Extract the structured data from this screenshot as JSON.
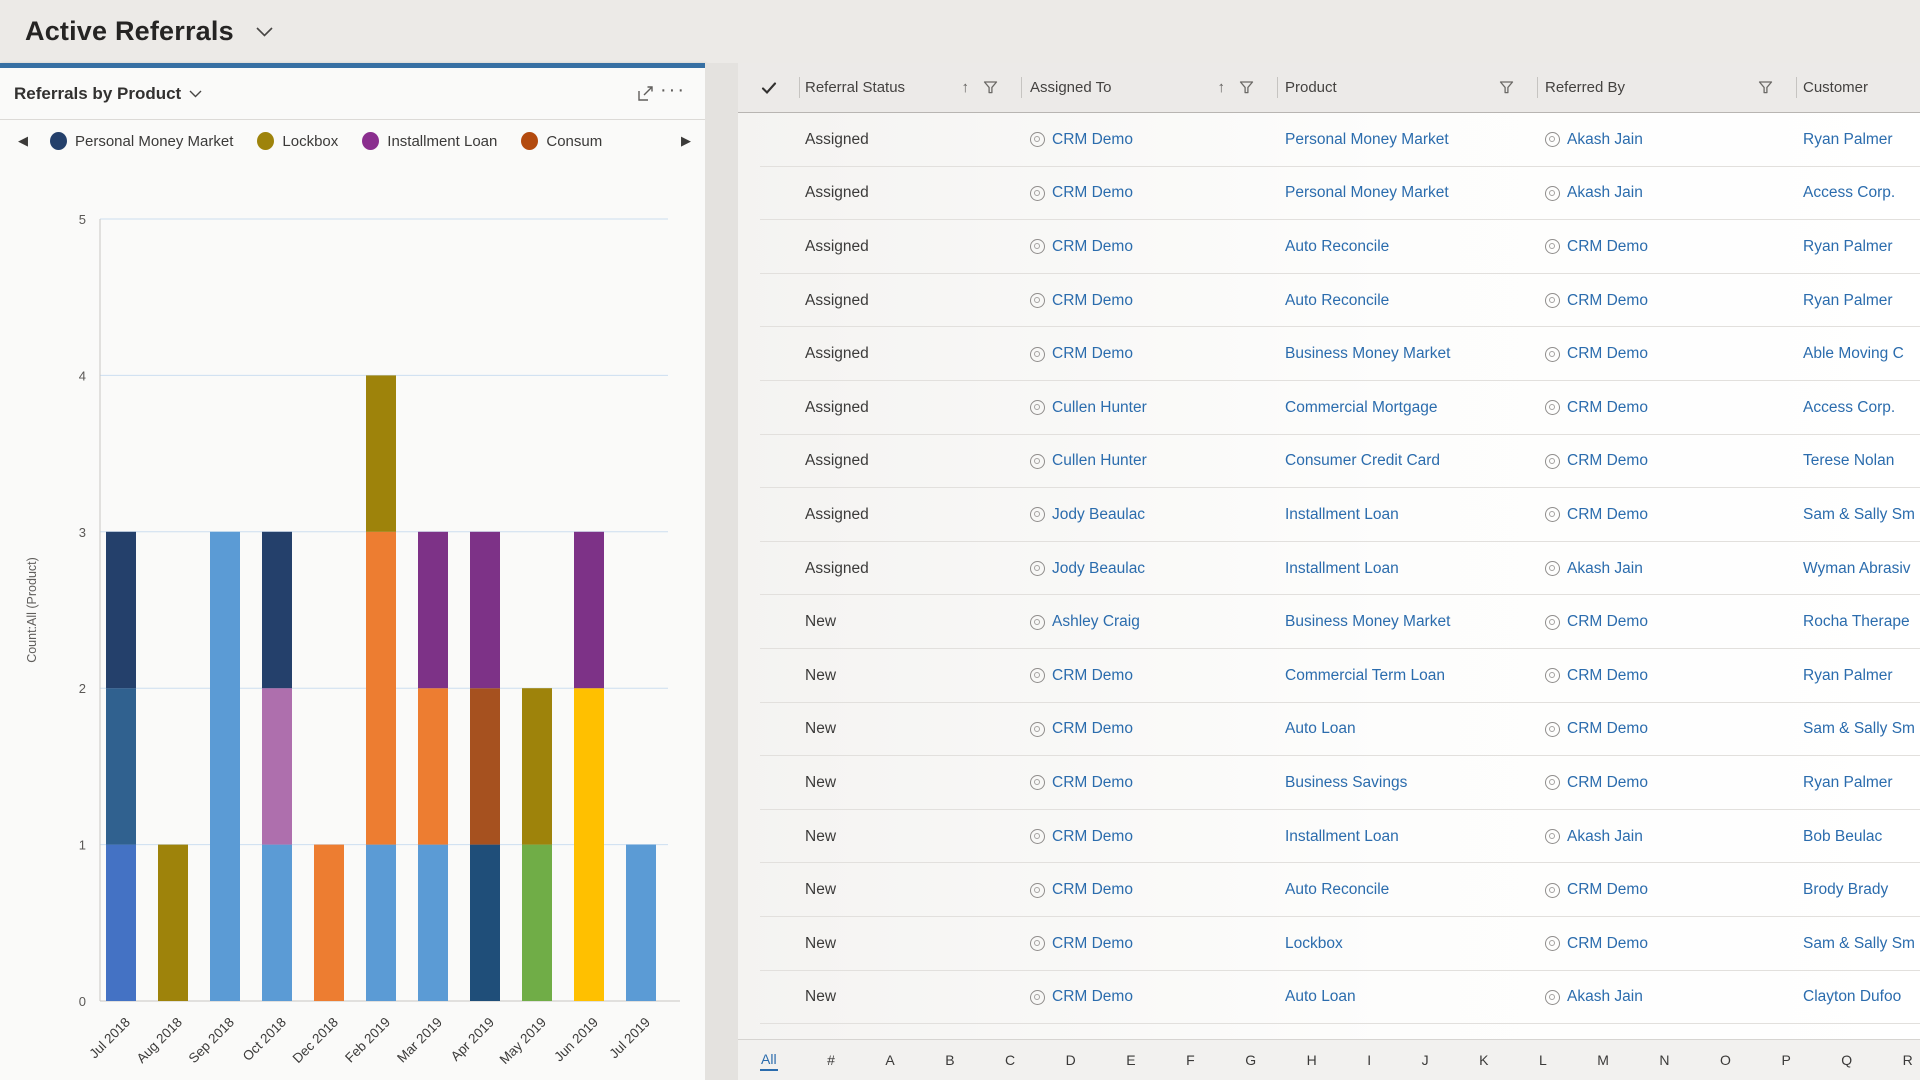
{
  "header": {
    "title": "Active Referrals"
  },
  "icons": {
    "row_select_check": "✓",
    "sort_ascending": "↑",
    "legend_prev": "◀",
    "legend_next": "▶",
    "more": "···"
  },
  "chart_panel": {
    "title": "Referrals by Product"
  },
  "chart_data": {
    "type": "stacked-bar",
    "title": "Referrals by Product",
    "ylabel": "Count:All (Product)",
    "ylim": [
      0,
      5
    ],
    "yticks": [
      0,
      1,
      2,
      3,
      4,
      5
    ],
    "grid": "horizontal",
    "legend_position": "top",
    "legend": [
      {
        "label": "Personal Money Market",
        "color": "#24406B"
      },
      {
        "label": "Lockbox",
        "color": "#9E830B"
      },
      {
        "label": "Installment Loan",
        "color": "#8A2E8E"
      },
      {
        "label": "Consum",
        "color": "#B34A0E"
      }
    ],
    "categories": [
      "Jul 2018",
      "Aug 2018",
      "Sep 2018",
      "Oct 2018",
      "Dec 2018",
      "Feb 2019",
      "Mar 2019",
      "Apr 2019",
      "May 2019",
      "Jun 2019",
      "Jul 2019"
    ],
    "stacks": [
      {
        "category": "Jul 2018",
        "segments": [
          {
            "value": 1,
            "color": "#4472C4"
          },
          {
            "value": 1,
            "color": "#30618F"
          },
          {
            "value": 1,
            "color": "#24406B"
          }
        ]
      },
      {
        "category": "Aug 2018",
        "segments": [
          {
            "value": 1,
            "color": "#9E830B"
          }
        ]
      },
      {
        "category": "Sep 2018",
        "segments": [
          {
            "value": 3,
            "color": "#5B9BD5"
          }
        ]
      },
      {
        "category": "Oct 2018",
        "segments": [
          {
            "value": 1,
            "color": "#5B9BD5"
          },
          {
            "value": 1,
            "color": "#AE6FAD"
          },
          {
            "value": 1,
            "color": "#24406B"
          }
        ]
      },
      {
        "category": "Dec 2018",
        "segments": [
          {
            "value": 1,
            "color": "#ED7D31"
          }
        ]
      },
      {
        "category": "Feb 2019",
        "segments": [
          {
            "value": 1,
            "color": "#5B9BD5"
          },
          {
            "value": 2,
            "color": "#ED7D31"
          },
          {
            "value": 1,
            "color": "#9E830B"
          }
        ]
      },
      {
        "category": "Mar 2019",
        "segments": [
          {
            "value": 1,
            "color": "#5B9BD5"
          },
          {
            "value": 1,
            "color": "#ED7D31"
          },
          {
            "value": 1,
            "color": "#7D3287"
          }
        ]
      },
      {
        "category": "Apr 2019",
        "segments": [
          {
            "value": 1,
            "color": "#1F4E79"
          },
          {
            "value": 1,
            "color": "#A6511F"
          },
          {
            "value": 1,
            "color": "#7D3287"
          }
        ]
      },
      {
        "category": "May 2019",
        "segments": [
          {
            "value": 1,
            "color": "#70AD47"
          },
          {
            "value": 1,
            "color": "#9E830B"
          }
        ]
      },
      {
        "category": "Jun 2019",
        "segments": [
          {
            "value": 2,
            "color": "#FFC000"
          },
          {
            "value": 1,
            "color": "#7D3287"
          }
        ]
      },
      {
        "category": "Jul 2019",
        "segments": [
          {
            "value": 1,
            "color": "#5B9BD5"
          }
        ]
      }
    ]
  },
  "grid": {
    "columns": [
      {
        "key": "status",
        "label": "Referral Status",
        "sort": true,
        "filter": true
      },
      {
        "key": "assigned",
        "label": "Assigned To",
        "sort": true,
        "filter": true
      },
      {
        "key": "product",
        "label": "Product",
        "sort": false,
        "filter": true
      },
      {
        "key": "referred",
        "label": "Referred By",
        "sort": false,
        "filter": true
      },
      {
        "key": "customer",
        "label": "Customer",
        "sort": false,
        "filter": false
      }
    ],
    "rows": [
      {
        "status": "Assigned",
        "assigned": "CRM Demo",
        "product": "Personal Money Market",
        "referred": "Akash Jain",
        "customer": "Ryan Palmer"
      },
      {
        "status": "Assigned",
        "assigned": "CRM Demo",
        "product": "Personal Money Market",
        "referred": "Akash Jain",
        "customer": "Access Corp."
      },
      {
        "status": "Assigned",
        "assigned": "CRM Demo",
        "product": "Auto Reconcile",
        "referred": "CRM Demo",
        "customer": "Ryan Palmer"
      },
      {
        "status": "Assigned",
        "assigned": "CRM Demo",
        "product": "Auto Reconcile",
        "referred": "CRM Demo",
        "customer": "Ryan Palmer"
      },
      {
        "status": "Assigned",
        "assigned": "CRM Demo",
        "product": "Business Money Market",
        "referred": "CRM Demo",
        "customer": "Able Moving C"
      },
      {
        "status": "Assigned",
        "assigned": "Cullen Hunter",
        "product": "Commercial Mortgage",
        "referred": "CRM Demo",
        "customer": "Access Corp."
      },
      {
        "status": "Assigned",
        "assigned": "Cullen Hunter",
        "product": "Consumer Credit Card",
        "referred": "CRM Demo",
        "customer": "Terese Nolan"
      },
      {
        "status": "Assigned",
        "assigned": "Jody Beaulac",
        "product": "Installment Loan",
        "referred": "CRM Demo",
        "customer": "Sam & Sally Sm"
      },
      {
        "status": "Assigned",
        "assigned": "Jody Beaulac",
        "product": "Installment Loan",
        "referred": "Akash Jain",
        "customer": "Wyman Abrasiv"
      },
      {
        "status": "New",
        "assigned": "Ashley Craig",
        "product": "Business Money Market",
        "referred": "CRM Demo",
        "customer": "Rocha Therape"
      },
      {
        "status": "New",
        "assigned": "CRM Demo",
        "product": "Commercial Term Loan",
        "referred": "CRM Demo",
        "customer": "Ryan Palmer"
      },
      {
        "status": "New",
        "assigned": "CRM Demo",
        "product": "Auto Loan",
        "referred": "CRM Demo",
        "customer": "Sam & Sally Sm"
      },
      {
        "status": "New",
        "assigned": "CRM Demo",
        "product": "Business Savings",
        "referred": "CRM Demo",
        "customer": "Ryan Palmer"
      },
      {
        "status": "New",
        "assigned": "CRM Demo",
        "product": "Installment Loan",
        "referred": "Akash Jain",
        "customer": "Bob Beulac"
      },
      {
        "status": "New",
        "assigned": "CRM Demo",
        "product": "Auto Reconcile",
        "referred": "CRM Demo",
        "customer": "Brody Brady"
      },
      {
        "status": "New",
        "assigned": "CRM Demo",
        "product": "Lockbox",
        "referred": "CRM Demo",
        "customer": "Sam & Sally Sm"
      },
      {
        "status": "New",
        "assigned": "CRM Demo",
        "product": "Auto Loan",
        "referred": "Akash Jain",
        "customer": "Clayton Dufoo"
      }
    ],
    "jump_bar": [
      "All",
      "#",
      "A",
      "B",
      "C",
      "D",
      "E",
      "F",
      "G",
      "H",
      "I",
      "J",
      "K",
      "L",
      "M",
      "N",
      "O",
      "P",
      "Q",
      "R"
    ],
    "jump_bar_active": "All"
  },
  "colors": {
    "accent": "#366FA3",
    "link": "#2B6CAD"
  }
}
